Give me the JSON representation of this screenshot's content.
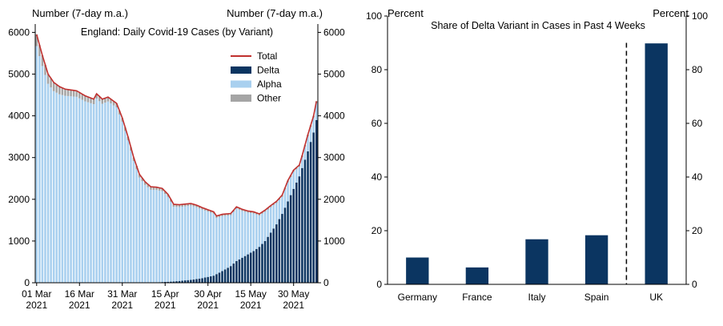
{
  "colors": {
    "delta": "#0b3561",
    "alpha": "#a9d0ef",
    "other": "#a5a5a5",
    "total": "#c0302e",
    "axis": "#000000"
  },
  "chart_data": [
    {
      "type": "bar",
      "stacked": true,
      "title": "England: Daily Covid-19 Cases (by Variant)",
      "ylabel_left": "Number (7-day m.a.)",
      "ylabel_right": "Number (7-day m.a.)",
      "ylim": [
        0,
        6200
      ],
      "yticks": [
        "0",
        "1000",
        "2000",
        "3000",
        "4000",
        "5000",
        "6000"
      ],
      "ytick_values": [
        0,
        1000,
        2000,
        3000,
        4000,
        5000,
        6000
      ],
      "x_start": "01 Mar 2021",
      "x_end": "06 Jun 2021",
      "xticks": [
        {
          "day": 0,
          "line1": "01 Mar",
          "line2": "2021"
        },
        {
          "day": 15,
          "line1": "16 Mar",
          "line2": "2021"
        },
        {
          "day": 30,
          "line1": "31 Mar",
          "line2": "2021"
        },
        {
          "day": 45,
          "line1": "15 Apr",
          "line2": "2021"
        },
        {
          "day": 60,
          "line1": "30 Apr",
          "line2": "2021"
        },
        {
          "day": 75,
          "line1": "15 May",
          "line2": "2021"
        },
        {
          "day": 90,
          "line1": "30 May",
          "line2": "2021"
        }
      ],
      "legend": {
        "position": "top-right",
        "entries": [
          "Total",
          "Delta",
          "Alpha",
          "Other"
        ]
      },
      "series": [
        {
          "name": "Total",
          "type": "line",
          "keyframes": [
            [
              0,
              5950
            ],
            [
              2,
              5450
            ],
            [
              4,
              5000
            ],
            [
              6,
              4800
            ],
            [
              8,
              4700
            ],
            [
              10,
              4640
            ],
            [
              14,
              4600
            ],
            [
              17,
              4480
            ],
            [
              20,
              4400
            ],
            [
              21,
              4530
            ],
            [
              23,
              4400
            ],
            [
              25,
              4450
            ],
            [
              28,
              4300
            ],
            [
              30,
              3950
            ],
            [
              32,
              3500
            ],
            [
              34,
              3000
            ],
            [
              36,
              2600
            ],
            [
              38,
              2420
            ],
            [
              40,
              2300
            ],
            [
              42,
              2290
            ],
            [
              44,
              2260
            ],
            [
              46,
              2120
            ],
            [
              48,
              1880
            ],
            [
              50,
              1870
            ],
            [
              54,
              1900
            ],
            [
              56,
              1860
            ],
            [
              58,
              1800
            ],
            [
              62,
              1700
            ],
            [
              63,
              1600
            ],
            [
              65,
              1640
            ],
            [
              68,
              1660
            ],
            [
              70,
              1820
            ],
            [
              72,
              1760
            ],
            [
              74,
              1720
            ],
            [
              76,
              1700
            ],
            [
              78,
              1650
            ],
            [
              80,
              1740
            ],
            [
              82,
              1850
            ],
            [
              84,
              1950
            ],
            [
              86,
              2100
            ],
            [
              88,
              2450
            ],
            [
              90,
              2700
            ],
            [
              92,
              2820
            ],
            [
              93,
              3050
            ],
            [
              95,
              3550
            ],
            [
              97,
              4000
            ],
            [
              98,
              4350
            ]
          ]
        },
        {
          "name": "Delta",
          "type": "bar",
          "keyframes": [
            [
              0,
              0
            ],
            [
              36,
              0
            ],
            [
              42,
              10
            ],
            [
              48,
              30
            ],
            [
              54,
              70
            ],
            [
              58,
              110
            ],
            [
              62,
              170
            ],
            [
              65,
              280
            ],
            [
              68,
              400
            ],
            [
              70,
              520
            ],
            [
              72,
              600
            ],
            [
              74,
              680
            ],
            [
              76,
              760
            ],
            [
              78,
              860
            ],
            [
              80,
              1000
            ],
            [
              82,
              1200
            ],
            [
              84,
              1400
            ],
            [
              86,
              1650
            ],
            [
              88,
              1950
            ],
            [
              90,
              2250
            ],
            [
              92,
              2550
            ],
            [
              93,
              2750
            ],
            [
              95,
              3150
            ],
            [
              97,
              3600
            ],
            [
              98,
              3900
            ]
          ]
        },
        {
          "name": "Alpha",
          "type": "bar",
          "note": "Alpha = Total - Delta - Other"
        },
        {
          "name": "Other",
          "type": "bar",
          "keyframes": [
            [
              0,
              280
            ],
            [
              10,
              160
            ],
            [
              20,
              120
            ],
            [
              30,
              90
            ],
            [
              40,
              70
            ],
            [
              50,
              55
            ],
            [
              60,
              45
            ],
            [
              70,
              40
            ],
            [
              80,
              40
            ],
            [
              90,
              40
            ],
            [
              98,
              40
            ]
          ]
        }
      ]
    },
    {
      "type": "bar",
      "title": "Share of Delta Variant in Cases in Past 4 Weeks",
      "ylabel_left": "Percent",
      "ylabel_right": "Percent",
      "ylim": [
        0,
        100
      ],
      "yticks": [
        "0",
        "20",
        "40",
        "60",
        "80",
        "100"
      ],
      "ytick_values": [
        0,
        20,
        40,
        60,
        80,
        100
      ],
      "categories": [
        "Germany",
        "France",
        "Italy",
        "Spain",
        "UK"
      ],
      "values": [
        10,
        6.3,
        16.8,
        18.3,
        89.8
      ],
      "divider_after": "Spain"
    }
  ]
}
